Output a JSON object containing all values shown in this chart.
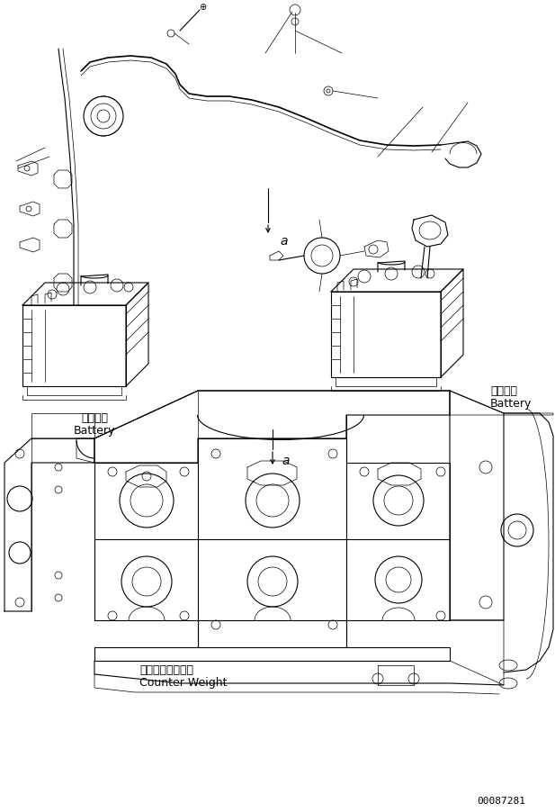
{
  "background_color": "#ffffff",
  "line_color": "#000000",
  "text_color": "#000000",
  "fig_width": 6.17,
  "fig_height": 9.03,
  "dpi": 100,
  "part_number": "00087281",
  "labels": {
    "battery_left_jp": "バッテリ",
    "battery_left_en": "Battery",
    "battery_right_jp": "バッテリ",
    "battery_right_en": "Battery",
    "counter_weight_jp": "カウンタウェイト",
    "counter_weight_en": "Counter Weight",
    "label_a": "a"
  },
  "font_sizes": {
    "label": 8,
    "part_num": 7,
    "a_label": 10
  }
}
